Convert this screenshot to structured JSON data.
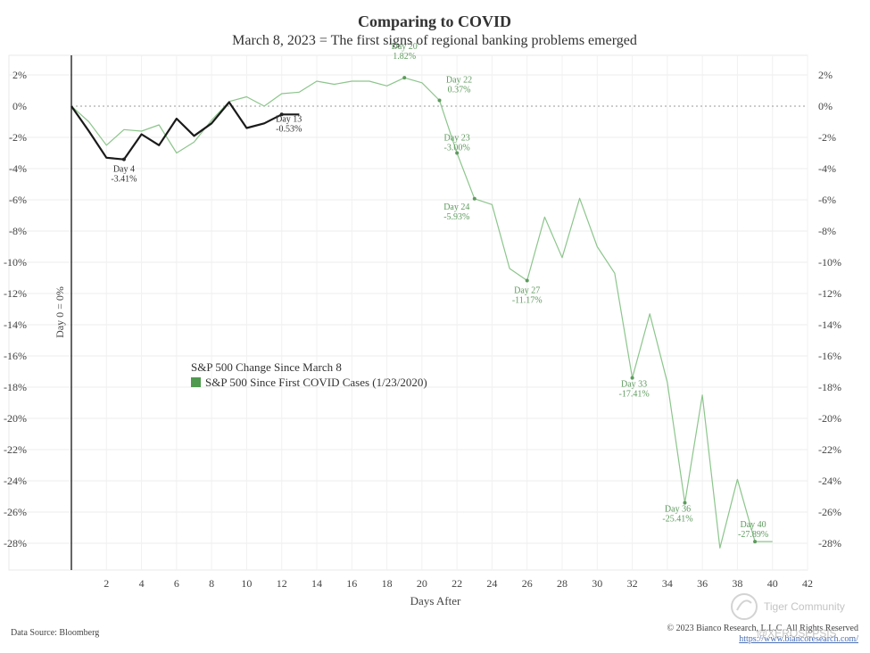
{
  "chart_data": {
    "type": "line",
    "title": "Comparing to COVID",
    "subtitle": "March 8, 2023 = The first signs of regional banking problems emerged",
    "xlabel": "Days After",
    "ylabel": "",
    "xlim": [
      0,
      42
    ],
    "ylim": [
      -30,
      3
    ],
    "x_ticks": [
      2,
      4,
      6,
      8,
      10,
      12,
      14,
      16,
      18,
      20,
      22,
      24,
      26,
      28,
      30,
      32,
      34,
      36,
      38,
      40,
      42
    ],
    "y_ticks": [
      2,
      0,
      -2,
      -4,
      -6,
      -8,
      -10,
      -12,
      -14,
      -16,
      -18,
      -20,
      -22,
      -24,
      -26,
      -28
    ],
    "y_tick_suffix": "%",
    "day_zero_label": "Day 0 = 0%",
    "series": [
      {
        "name": "S&P 500 Change Since March 8",
        "color": "#1a1a1a",
        "x": [
          0,
          1,
          2,
          3,
          4,
          5,
          6,
          7,
          8,
          9,
          10,
          11,
          12,
          13
        ],
        "values": [
          0,
          -1.6,
          -3.3,
          -3.41,
          -1.8,
          -2.5,
          -0.8,
          -1.9,
          -1.1,
          0.25,
          -1.4,
          -1.1,
          -0.53,
          -0.53
        ]
      },
      {
        "name": "S&P 500 Since First COVID Cases (1/23/2020)",
        "color": "#8cc58c",
        "x": [
          0,
          1,
          2,
          3,
          4,
          5,
          6,
          7,
          8,
          9,
          10,
          11,
          12,
          13,
          14,
          15,
          16,
          17,
          18,
          19,
          20,
          21,
          22,
          23,
          24,
          25,
          26,
          27,
          28,
          29,
          30,
          31,
          32,
          33,
          34,
          35,
          36,
          37,
          38,
          39,
          40
        ],
        "values": [
          0,
          -1.0,
          -2.5,
          -1.5,
          -1.6,
          -1.2,
          -3.0,
          -2.3,
          -0.9,
          0.3,
          0.6,
          0.0,
          0.8,
          0.9,
          1.6,
          1.4,
          1.6,
          1.6,
          1.3,
          1.82,
          1.5,
          0.37,
          -3.0,
          -5.93,
          -6.3,
          -10.4,
          -11.17,
          -7.1,
          -9.7,
          -5.9,
          -9.0,
          -10.7,
          -17.41,
          -13.3,
          -17.7,
          -25.41,
          -18.5,
          -28.3,
          -23.9,
          -27.89,
          -27.89
        ]
      }
    ],
    "annotations": {
      "black": [
        {
          "x": 3,
          "y": -3.41,
          "label": "Day 4",
          "value": "-3.41%"
        },
        {
          "x": 12,
          "y": -0.53,
          "label": "Day 13",
          "value": "-0.53%"
        }
      ],
      "green": [
        {
          "x": 19,
          "y": 1.82,
          "label": "Day 20",
          "value": "1.82%"
        },
        {
          "x": 21,
          "y": 0.37,
          "label": "Day 22",
          "value": "0.37%"
        },
        {
          "x": 22,
          "y": -3.0,
          "label": "Day 23",
          "value": "-3.00%"
        },
        {
          "x": 23,
          "y": -5.93,
          "label": "Day 24",
          "value": "-5.93%"
        },
        {
          "x": 26,
          "y": -11.17,
          "label": "Day 27",
          "value": "-11.17%"
        },
        {
          "x": 32,
          "y": -17.41,
          "label": "Day 33",
          "value": "-17.41%"
        },
        {
          "x": 35,
          "y": -25.41,
          "label": "Day 36",
          "value": "-25.41%"
        },
        {
          "x": 39,
          "y": -27.89,
          "label": "Day 40",
          "value": "-27.89%"
        }
      ]
    },
    "legend": {
      "placement": "center-left",
      "entries": [
        {
          "label": "S&P 500 Change Since March 8",
          "swatch": false
        },
        {
          "label": "S&P 500 Since First COVID Cases (1/23/2020)",
          "swatch": true,
          "color": "#4f9a4f"
        }
      ]
    }
  },
  "footer": {
    "source": "Data Source: Bloomberg",
    "copyright": "© 2023 Bianco Research, L.L.C. All Rights Reserved",
    "link": "https://www.biancoresearch.com/"
  },
  "watermark": {
    "text": "Tiger Community",
    "handle": "@XEROSEPSIS"
  }
}
